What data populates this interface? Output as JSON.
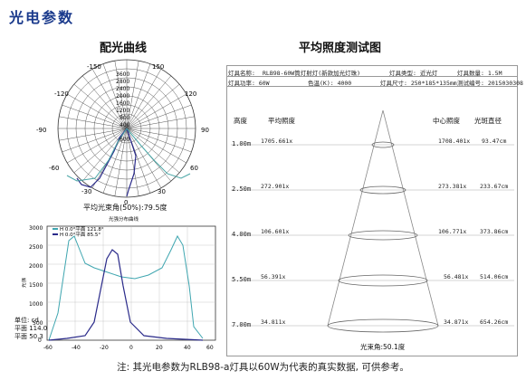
{
  "section_title": "光电参数",
  "polar": {
    "title": "配光曲线",
    "angle_labels": [
      "-150",
      "150",
      "-120",
      "120",
      "-90",
      "90",
      "-60",
      "60",
      "-30",
      "30",
      "0"
    ],
    "radial_labels": [
      "3600",
      "2800",
      "2400",
      "2000",
      "1600",
      "1200",
      "800",
      "400",
      "600"
    ],
    "beam_angle_label": "平均光束角(50%):79.5度"
  },
  "line_chart": {
    "title": "光强分布曲线",
    "legend": [
      "H 0.0°平面 121.8°",
      "H 0.0°平面 85.5°"
    ],
    "y_ticks": [
      "3000",
      "2500",
      "2000",
      "1500",
      "1000",
      "500",
      "0"
    ],
    "x_ticks": [
      "-60",
      "-40",
      "-20",
      "0",
      "20",
      "40",
      "60"
    ],
    "y_axis_label": "光强",
    "info": [
      "单位: cd",
      "平面  114.0",
      "平面  50.3"
    ]
  },
  "illum": {
    "title": "平均照度测试图",
    "header_rows": [
      [
        "灯具名称:",
        "RLB98-60W筒灯射灯(新款加光灯珠)",
        "",
        "灯具类型: 近光灯",
        "灯具数量: 1.5M"
      ],
      [
        "灯具功率: 60W",
        "色温(K): 4000",
        "灯具尺寸: 250*185*135mm",
        "测试编号: 2015030308"
      ]
    ],
    "col_headers": [
      "高度",
      "平均照度",
      "中心照度",
      "光斑直径"
    ],
    "rows": [
      {
        "height": "1.00m",
        "avg": "1705.661x",
        "center": "1708.401x",
        "diameter": "93.47cm"
      },
      {
        "height": "2.50m",
        "avg": "272.901x",
        "center": "273.381x",
        "diameter": "233.67cm"
      },
      {
        "height": "4.00m",
        "avg": "106.601x",
        "center": "106.771x",
        "diameter": "373.86cm"
      },
      {
        "height": "5.50m",
        "avg": "56.391x",
        "center": "56.481x",
        "diameter": "514.06cm"
      },
      {
        "height": "7.00m",
        "avg": "34.811x",
        "center": "34.871x",
        "diameter": "654.26cm"
      }
    ],
    "beam_label": "光束角:50.1度"
  },
  "footnote": "注: 其光电参数为RLB98-a灯具以60W为代表的真实数据, 可供参考。"
}
